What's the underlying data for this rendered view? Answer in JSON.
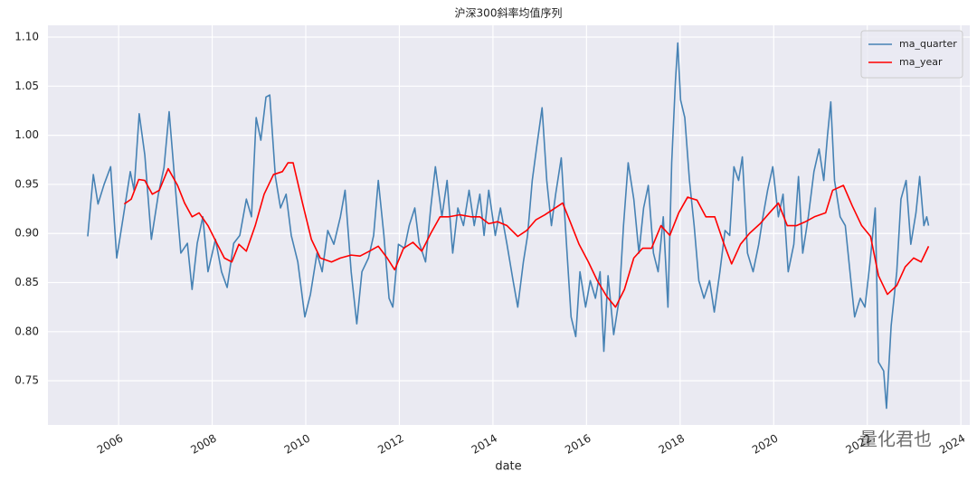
{
  "chart_data": {
    "type": "line",
    "title": "沪深300斜率均值序列",
    "x_label": "date",
    "watermark": "量化君也",
    "xlim": [
      2004.49,
      2024.19
    ],
    "xticks": [
      2006,
      2008,
      2010,
      2012,
      2014,
      2016,
      2018,
      2020,
      2022,
      2024
    ],
    "ylim": [
      0.705,
      1.112
    ],
    "yticks": [
      0.75,
      {
        "value": 0.8,
        "label": "0.80"
      },
      0.85,
      {
        "value": 0.9,
        "label": "0.90"
      },
      0.95,
      {
        "value": 1.0,
        "label": "1.00"
      },
      1.05,
      {
        "value": 1.1,
        "label": "1.10"
      }
    ],
    "grid": true,
    "legend": "upper right",
    "series": [
      {
        "name": "ma_quarter",
        "color": "#4682b4",
        "x": [
          2005.34,
          2005.46,
          2005.56,
          2005.69,
          2005.83,
          2005.96,
          2006.1,
          2006.25,
          2006.33,
          2006.44,
          2006.56,
          2006.7,
          2006.85,
          2006.97,
          2007.08,
          2007.2,
          2007.33,
          2007.47,
          2007.57,
          2007.68,
          2007.8,
          2007.91,
          2008.07,
          2008.2,
          2008.32,
          2008.46,
          2008.59,
          2008.73,
          2008.84,
          2008.94,
          2009.04,
          2009.15,
          2009.23,
          2009.35,
          2009.46,
          2009.58,
          2009.69,
          2009.83,
          2009.98,
          2010.1,
          2010.24,
          2010.35,
          2010.47,
          2010.6,
          2010.74,
          2010.84,
          2010.97,
          2011.09,
          2011.2,
          2011.34,
          2011.45,
          2011.55,
          2011.67,
          2011.78,
          2011.86,
          2011.98,
          2012.11,
          2012.21,
          2012.33,
          2012.42,
          2012.56,
          2012.67,
          2012.77,
          2012.91,
          2013.02,
          2013.14,
          2013.25,
          2013.37,
          2013.49,
          2013.6,
          2013.72,
          2013.81,
          2013.91,
          2014.05,
          2014.16,
          2014.3,
          2014.43,
          2014.53,
          2014.65,
          2014.74,
          2014.84,
          2014.94,
          2015.05,
          2015.15,
          2015.25,
          2015.34,
          2015.46,
          2015.56,
          2015.67,
          2015.77,
          2015.86,
          2015.98,
          2016.08,
          2016.19,
          2016.29,
          2016.37,
          2016.46,
          2016.58,
          2016.7,
          2016.79,
          2016.89,
          2017.01,
          2017.12,
          2017.22,
          2017.32,
          2017.43,
          2017.53,
          2017.64,
          2017.74,
          2017.82,
          2017.9,
          2017.95,
          2018.01,
          2018.1,
          2018.2,
          2018.3,
          2018.4,
          2018.51,
          2018.63,
          2018.73,
          2018.85,
          2018.96,
          2019.06,
          2019.15,
          2019.25,
          2019.33,
          2019.44,
          2019.56,
          2019.68,
          2019.77,
          2019.87,
          2019.98,
          2020.1,
          2020.2,
          2020.31,
          2020.43,
          2020.53,
          2020.62,
          2020.74,
          2020.86,
          2020.97,
          2021.07,
          2021.15,
          2021.22,
          2021.3,
          2021.42,
          2021.53,
          2021.63,
          2021.73,
          2021.85,
          2021.95,
          2022.06,
          2022.17,
          2022.24,
          2022.35,
          2022.41,
          2022.51,
          2022.63,
          2022.72,
          2022.83,
          2022.93,
          2023.04,
          2023.12,
          2023.21,
          2023.27,
          2023.31
        ],
        "values": [
          0.897,
          0.96,
          0.93,
          0.95,
          0.968,
          0.875,
          0.917,
          0.963,
          0.944,
          1.022,
          0.98,
          0.894,
          0.94,
          0.967,
          1.024,
          0.954,
          0.88,
          0.89,
          0.843,
          0.89,
          0.917,
          0.861,
          0.894,
          0.861,
          0.845,
          0.89,
          0.898,
          0.935,
          0.917,
          1.018,
          0.995,
          1.039,
          1.041,
          0.958,
          0.926,
          0.94,
          0.898,
          0.871,
          0.815,
          0.838,
          0.88,
          0.861,
          0.903,
          0.889,
          0.917,
          0.944,
          0.861,
          0.808,
          0.861,
          0.875,
          0.898,
          0.954,
          0.898,
          0.834,
          0.825,
          0.889,
          0.885,
          0.908,
          0.926,
          0.891,
          0.871,
          0.926,
          0.968,
          0.917,
          0.954,
          0.88,
          0.926,
          0.908,
          0.944,
          0.908,
          0.94,
          0.898,
          0.944,
          0.898,
          0.926,
          0.889,
          0.852,
          0.825,
          0.871,
          0.898,
          0.954,
          0.99,
          1.028,
          0.954,
          0.908,
          0.94,
          0.977,
          0.898,
          0.815,
          0.795,
          0.861,
          0.825,
          0.852,
          0.834,
          0.861,
          0.78,
          0.857,
          0.797,
          0.834,
          0.908,
          0.972,
          0.935,
          0.88,
          0.926,
          0.949,
          0.88,
          0.861,
          0.917,
          0.825,
          0.972,
          1.055,
          1.094,
          1.036,
          1.018,
          0.954,
          0.908,
          0.852,
          0.834,
          0.852,
          0.82,
          0.861,
          0.903,
          0.898,
          0.968,
          0.954,
          0.978,
          0.88,
          0.861,
          0.889,
          0.917,
          0.944,
          0.968,
          0.917,
          0.94,
          0.861,
          0.889,
          0.958,
          0.88,
          0.917,
          0.963,
          0.986,
          0.954,
          1.0,
          1.034,
          0.954,
          0.917,
          0.908,
          0.861,
          0.815,
          0.834,
          0.825,
          0.871,
          0.926,
          0.769,
          0.76,
          0.722,
          0.806,
          0.861,
          0.935,
          0.954,
          0.889,
          0.921,
          0.958,
          0.908,
          0.917,
          0.908
        ]
      },
      {
        "name": "ma_year",
        "color": "#ff0000",
        "x": [
          2006.12,
          2006.27,
          2006.43,
          2006.56,
          2006.72,
          2006.87,
          2007.06,
          2007.26,
          2007.41,
          2007.57,
          2007.72,
          2007.91,
          2008.11,
          2008.26,
          2008.42,
          2008.57,
          2008.73,
          2008.92,
          2009.11,
          2009.31,
          2009.5,
          2009.62,
          2009.73,
          2009.93,
          2010.12,
          2010.31,
          2010.55,
          2010.74,
          2010.97,
          2011.16,
          2011.36,
          2011.55,
          2011.74,
          2011.9,
          2012.09,
          2012.29,
          2012.48,
          2012.67,
          2012.87,
          2013.06,
          2013.29,
          2013.53,
          2013.72,
          2013.91,
          2014.1,
          2014.3,
          2014.53,
          2014.72,
          2014.92,
          2015.11,
          2015.3,
          2015.49,
          2015.65,
          2015.84,
          2016.04,
          2016.23,
          2016.43,
          2016.62,
          2016.81,
          2017.01,
          2017.2,
          2017.39,
          2017.59,
          2017.78,
          2017.97,
          2018.16,
          2018.36,
          2018.55,
          2018.74,
          2018.94,
          2019.1,
          2019.29,
          2019.48,
          2019.71,
          2019.91,
          2020.1,
          2020.29,
          2020.49,
          2020.68,
          2020.87,
          2021.11,
          2021.26,
          2021.49,
          2021.68,
          2021.88,
          2022.07,
          2022.24,
          2022.43,
          2022.63,
          2022.81,
          2022.99,
          2023.15,
          2023.31
        ],
        "values": [
          0.93,
          0.935,
          0.955,
          0.954,
          0.94,
          0.944,
          0.966,
          0.949,
          0.931,
          0.917,
          0.921,
          0.908,
          0.889,
          0.875,
          0.871,
          0.889,
          0.882,
          0.908,
          0.94,
          0.96,
          0.963,
          0.972,
          0.972,
          0.931,
          0.894,
          0.875,
          0.871,
          0.875,
          0.878,
          0.877,
          0.882,
          0.887,
          0.875,
          0.863,
          0.885,
          0.891,
          0.882,
          0.9,
          0.917,
          0.917,
          0.919,
          0.917,
          0.917,
          0.91,
          0.912,
          0.908,
          0.897,
          0.903,
          0.914,
          0.919,
          0.925,
          0.931,
          0.912,
          0.889,
          0.871,
          0.852,
          0.836,
          0.825,
          0.843,
          0.875,
          0.885,
          0.885,
          0.908,
          0.898,
          0.921,
          0.937,
          0.934,
          0.917,
          0.917,
          0.889,
          0.869,
          0.889,
          0.9,
          0.91,
          0.921,
          0.931,
          0.908,
          0.908,
          0.912,
          0.917,
          0.921,
          0.944,
          0.949,
          0.928,
          0.908,
          0.897,
          0.857,
          0.838,
          0.847,
          0.866,
          0.875,
          0.871,
          0.887
        ]
      }
    ]
  }
}
